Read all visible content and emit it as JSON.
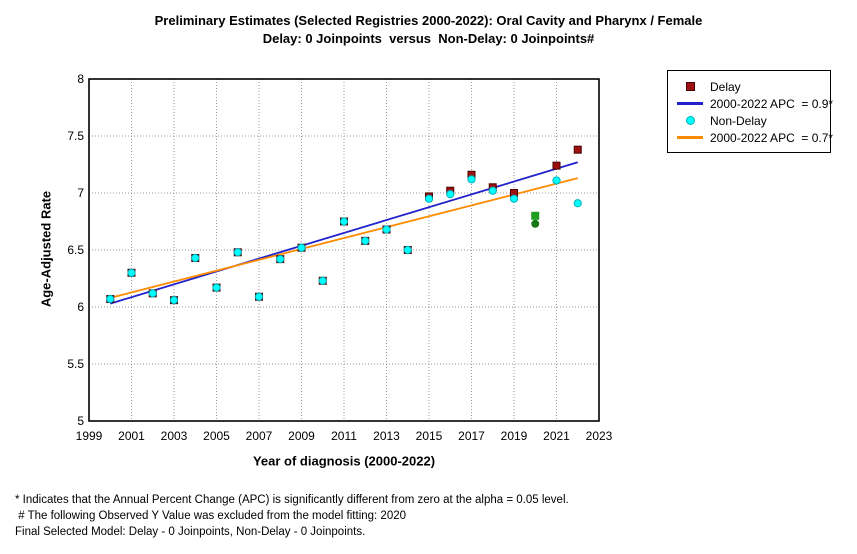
{
  "title": {
    "line1": "Preliminary Estimates (Selected Registries 2000-2022): Oral Cavity and Pharynx / Female",
    "line2": "Delay: 0 Joinpoints  versus  Non-Delay: 0 Joinpoints#"
  },
  "axes": {
    "y_label": "Age-Adjusted Rate",
    "x_label": "Year of diagnosis (2000-2022)"
  },
  "legend": {
    "items": [
      {
        "type": "square",
        "color": "#9e1010",
        "label": "Delay"
      },
      {
        "type": "line",
        "color": "#2222cc",
        "label": "2000-2022 APC  = 0.9*"
      },
      {
        "type": "circle",
        "color": "#00ffff",
        "label": "Non-Delay"
      },
      {
        "type": "line",
        "color": "#ff8c00",
        "label": "2000-2022 APC  = 0.7*"
      }
    ]
  },
  "footnotes": [
    "* Indicates that the Annual Percent Change (APC) is significantly different from zero at the alpha = 0.05 level.",
    " # The following Observed Y Value was excluded from the model fitting: 2020",
    "Final Selected Model: Delay - 0 Joinpoints, Non-Delay - 0 Joinpoints."
  ],
  "chart_data": {
    "type": "scatter",
    "title": "Preliminary Estimates (Selected Registries 2000-2022): Oral Cavity and Pharynx / Female",
    "subtitle": "Delay: 0 Joinpoints  versus  Non-Delay: 0 Joinpoints#",
    "xlabel": "Year of diagnosis (2000-2022)",
    "ylabel": "Age-Adjusted Rate",
    "xlim": [
      1999,
      2023
    ],
    "ylim": [
      5,
      8
    ],
    "x_ticks": [
      1999,
      2001,
      2003,
      2005,
      2007,
      2009,
      2011,
      2013,
      2015,
      2017,
      2019,
      2021,
      2023
    ],
    "y_ticks": [
      5,
      5.5,
      6,
      6.5,
      7,
      7.5,
      8
    ],
    "grid": "dotted",
    "legend_position": "top-right-outside",
    "excluded_year_note": "2020 observed values excluded from model fitting (shown in green)",
    "series": [
      {
        "name": "Delay",
        "key": "delay",
        "marker": "square",
        "color": "#9e1010",
        "border": "#4a0000",
        "points": [
          [
            2000,
            6.07
          ],
          [
            2001,
            6.3
          ],
          [
            2002,
            6.12
          ],
          [
            2003,
            6.06
          ],
          [
            2004,
            6.43
          ],
          [
            2005,
            6.17
          ],
          [
            2006,
            6.48
          ],
          [
            2007,
            6.09
          ],
          [
            2008,
            6.42
          ],
          [
            2009,
            6.52
          ],
          [
            2010,
            6.23
          ],
          [
            2011,
            6.75
          ],
          [
            2012,
            6.58
          ],
          [
            2013,
            6.68
          ],
          [
            2014,
            6.5
          ],
          [
            2015,
            6.97
          ],
          [
            2016,
            7.02
          ],
          [
            2017,
            7.16
          ],
          [
            2018,
            7.05
          ],
          [
            2019,
            7.0
          ],
          [
            2021,
            7.24
          ],
          [
            2022,
            7.38
          ]
        ],
        "excluded_point": {
          "year": 2020,
          "value": 6.8,
          "color": "#1e9e1e",
          "marker": "square"
        }
      },
      {
        "name": "Non-Delay",
        "key": "nondelay",
        "marker": "circle",
        "color": "#00ffff",
        "border": "#00b0bb",
        "points": [
          [
            2000,
            6.07
          ],
          [
            2001,
            6.3
          ],
          [
            2002,
            6.12
          ],
          [
            2003,
            6.06
          ],
          [
            2004,
            6.43
          ],
          [
            2005,
            6.17
          ],
          [
            2006,
            6.48
          ],
          [
            2007,
            6.09
          ],
          [
            2008,
            6.42
          ],
          [
            2009,
            6.52
          ],
          [
            2010,
            6.23
          ],
          [
            2011,
            6.75
          ],
          [
            2012,
            6.58
          ],
          [
            2013,
            6.68
          ],
          [
            2014,
            6.5
          ],
          [
            2015,
            6.95
          ],
          [
            2016,
            6.99
          ],
          [
            2017,
            7.12
          ],
          [
            2018,
            7.02
          ],
          [
            2019,
            6.95
          ],
          [
            2021,
            7.11
          ],
          [
            2022,
            6.91
          ]
        ],
        "excluded_point": {
          "year": 2020,
          "value": 6.73,
          "color": "#157815",
          "marker": "circle"
        }
      }
    ],
    "trend_lines": [
      {
        "name": "delay-trend-line",
        "label": "Delay 2000-2022 APC = 0.9*",
        "color": "#2222cc",
        "x": [
          2000,
          2022
        ],
        "y": [
          6.03,
          7.27
        ]
      },
      {
        "name": "nondelay-trend-line",
        "label": "Non-Delay 2000-2022 APC = 0.7*",
        "color": "#ff8c00",
        "x": [
          2000,
          2022
        ],
        "y": [
          6.08,
          7.13
        ]
      }
    ]
  }
}
